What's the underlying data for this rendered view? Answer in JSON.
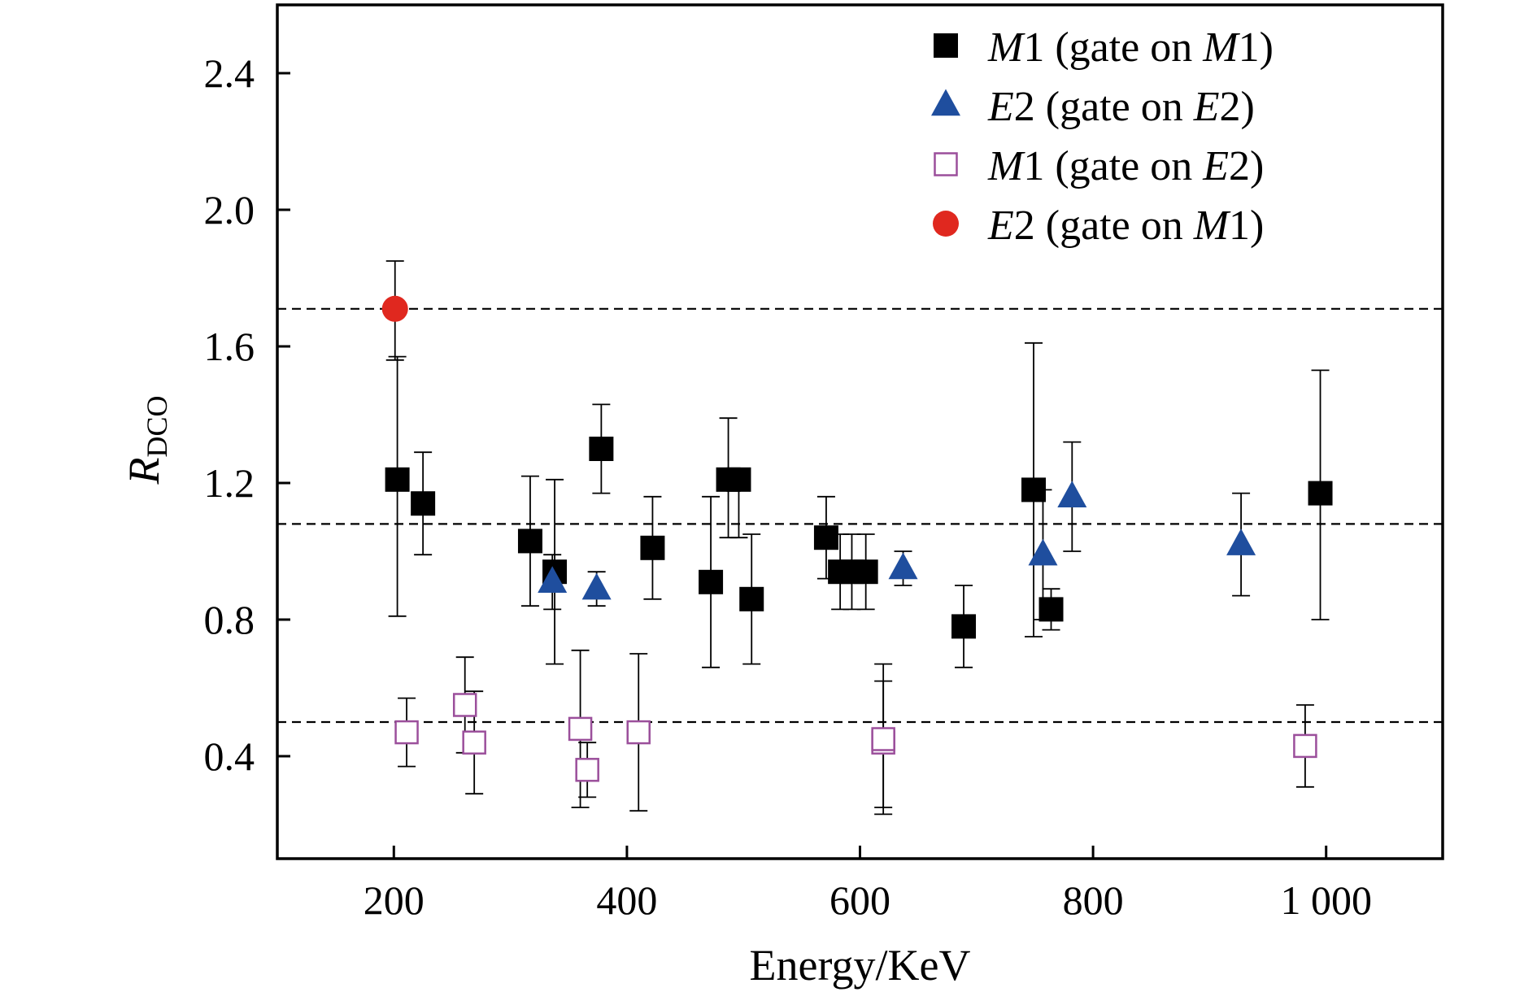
{
  "chart_data": {
    "type": "scatter",
    "xlabel": "Energy/KeV",
    "ylabel_main": "R",
    "ylabel_sub": "DCO",
    "xlim": [
      100,
      1100
    ],
    "ylim": [
      0.1,
      2.6
    ],
    "x_ticks": [
      200,
      400,
      600,
      800,
      1000
    ],
    "x_tick_labels": [
      "200",
      "400",
      "600",
      "800",
      "1 000"
    ],
    "y_ticks": [
      0.4,
      0.8,
      1.2,
      1.6,
      2.0,
      2.4
    ],
    "y_tick_labels": [
      "0.4",
      "0.8",
      "1.2",
      "1.6",
      "2.0",
      "2.4"
    ],
    "reference_lines": [
      1.71,
      1.08,
      0.5
    ],
    "grid": false,
    "legend_position": "top-right",
    "series": [
      {
        "name": "M1 (gate on M1)",
        "legend_parts": [
          [
            "M",
            true
          ],
          [
            "1 (gate on ",
            false
          ],
          [
            "M",
            true
          ],
          [
            "1)",
            false
          ]
        ],
        "marker": "square-filled",
        "color": "#000000",
        "points": [
          {
            "x": 203,
            "y": 1.21,
            "err_low": 0.4,
            "err_high": 0.36
          },
          {
            "x": 225,
            "y": 1.14,
            "err_low": 0.15,
            "err_high": 0.15
          },
          {
            "x": 317,
            "y": 1.03,
            "err_low": 0.19,
            "err_high": 0.19
          },
          {
            "x": 338,
            "y": 0.94,
            "err_low": 0.27,
            "err_high": 0.27
          },
          {
            "x": 378,
            "y": 1.3,
            "err_low": 0.13,
            "err_high": 0.13
          },
          {
            "x": 422,
            "y": 1.01,
            "err_low": 0.15,
            "err_high": 0.15
          },
          {
            "x": 472,
            "y": 0.91,
            "err_low": 0.25,
            "err_high": 0.25
          },
          {
            "x": 487,
            "y": 1.21,
            "err_low": 0.17,
            "err_high": 0.18
          },
          {
            "x": 496,
            "y": 1.21,
            "err_low": 0.17,
            "err_high": 0.03
          },
          {
            "x": 507,
            "y": 0.86,
            "err_low": 0.19,
            "err_high": 0.19
          },
          {
            "x": 571,
            "y": 1.04,
            "err_low": 0.12,
            "err_high": 0.12
          },
          {
            "x": 583,
            "y": 0.94,
            "err_low": 0.11,
            "err_high": 0.11
          },
          {
            "x": 593,
            "y": 0.94,
            "err_low": 0.11,
            "err_high": 0.11
          },
          {
            "x": 605,
            "y": 0.94,
            "err_low": 0.11,
            "err_high": 0.11
          },
          {
            "x": 689,
            "y": 0.78,
            "err_low": 0.12,
            "err_high": 0.12
          },
          {
            "x": 749,
            "y": 1.18,
            "err_low": 0.43,
            "err_high": 0.43
          },
          {
            "x": 764,
            "y": 0.83,
            "err_low": 0.06,
            "err_high": 0.06
          },
          {
            "x": 995,
            "y": 1.17,
            "err_low": 0.37,
            "err_high": 0.36
          }
        ]
      },
      {
        "name": "E2 (gate on E2)",
        "legend_parts": [
          [
            "E",
            true
          ],
          [
            "2 (gate on ",
            false
          ],
          [
            "E",
            true
          ],
          [
            "2)",
            false
          ]
        ],
        "marker": "triangle-filled",
        "color": "#1f4e9e",
        "points": [
          {
            "x": 336,
            "y": 0.91,
            "err_low": 0.08,
            "err_high": 0.08
          },
          {
            "x": 374,
            "y": 0.89,
            "err_low": 0.05,
            "err_high": 0.05
          },
          {
            "x": 637,
            "y": 0.95,
            "err_low": 0.05,
            "err_high": 0.05
          },
          {
            "x": 757,
            "y": 0.99,
            "err_low": 0.19,
            "err_high": 0.19
          },
          {
            "x": 782,
            "y": 1.16,
            "err_low": 0.16,
            "err_high": 0.16
          },
          {
            "x": 927,
            "y": 1.02,
            "err_low": 0.15,
            "err_high": 0.15
          }
        ]
      },
      {
        "name": "M1 (gate on E2)",
        "legend_parts": [
          [
            "M",
            true
          ],
          [
            "1 (gate on ",
            false
          ],
          [
            "E",
            true
          ],
          [
            "2)",
            false
          ]
        ],
        "marker": "square-open",
        "color": "#9b4f9b",
        "points": [
          {
            "x": 211,
            "y": 0.47,
            "err_low": 0.1,
            "err_high": 0.1
          },
          {
            "x": 261,
            "y": 0.55,
            "err_low": 0.14,
            "err_high": 0.14
          },
          {
            "x": 269,
            "y": 0.44,
            "err_low": 0.15,
            "err_high": 0.15
          },
          {
            "x": 360,
            "y": 0.48,
            "err_low": 0.23,
            "err_high": 0.23
          },
          {
            "x": 366,
            "y": 0.36,
            "err_low": 0.08,
            "err_high": 0.08
          },
          {
            "x": 410,
            "y": 0.47,
            "err_low": 0.23,
            "err_high": 0.23
          },
          {
            "x": 620,
            "y": 0.44,
            "err_low": 0.19,
            "err_high": 0.18
          },
          {
            "x": 620,
            "y": 0.45,
            "err_low": 0.22,
            "err_high": 0.22
          },
          {
            "x": 982,
            "y": 0.43,
            "err_low": 0.12,
            "err_high": 0.12
          }
        ]
      },
      {
        "name": "E2 (gate on M1)",
        "legend_parts": [
          [
            "E",
            true
          ],
          [
            "2 (gate on ",
            false
          ],
          [
            "M",
            true
          ],
          [
            "1)",
            false
          ]
        ],
        "marker": "circle-filled",
        "color": "#e0281f",
        "points": [
          {
            "x": 201,
            "y": 1.71,
            "err_low": 0.15,
            "err_high": 0.14
          }
        ]
      }
    ]
  }
}
